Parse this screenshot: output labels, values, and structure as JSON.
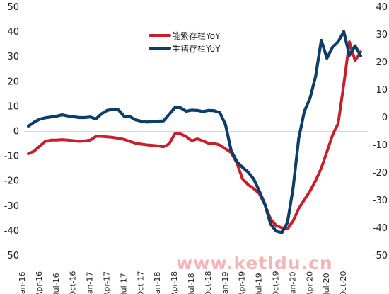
{
  "chart_data": {
    "type": "line",
    "title": "",
    "xlabel": "",
    "ylabel": "",
    "y2label": "",
    "grid": false,
    "legend_placement": "top-center",
    "watermark": "www.ketldu.cn",
    "left_axis": {
      "min": -50,
      "max": 50,
      "ticks": [
        50,
        40,
        30,
        20,
        10,
        0,
        -10,
        -20,
        -30,
        -40,
        -50
      ]
    },
    "right_axis": {
      "min": -50,
      "max": 40,
      "ticks": [
        40,
        30,
        20,
        10,
        0,
        -10,
        -20,
        -30,
        -40,
        -50
      ]
    },
    "x_tick_labels": [
      "Jan-16",
      "Apr-16",
      "Jul-16",
      "Oct-16",
      "Jan-17",
      "Apr-17",
      "Jul-17",
      "Oct-17",
      "Jan-18",
      "Apr-18",
      "Jul-18",
      "Oct-18",
      "Jan-19",
      "Apr-19",
      "Jul-19",
      "Oct-19",
      "Jan-20",
      "Apr-20",
      "Jul-20",
      "Oct-20"
    ],
    "series": [
      {
        "name": "能繁存栏YoY",
        "color": "#c91f2c",
        "axis": "left",
        "values": [
          -9,
          -8,
          -6,
          -4,
          -3.5,
          -3.5,
          -3.3,
          -3.5,
          -3.7,
          -4,
          -3.8,
          -3.5,
          -2,
          -2,
          -2.2,
          -2.4,
          -2.8,
          -3.2,
          -4,
          -4.7,
          -5.1,
          -5.4,
          -5.6,
          -5.8,
          -6.2,
          -5,
          -1,
          -1,
          -2,
          -3.8,
          -3,
          -3.8,
          -4.8,
          -4.8,
          -5.5,
          -7,
          -8.5,
          -12.6,
          -19,
          -21.4,
          -23,
          -25,
          -29.5,
          -35.2,
          -37.9,
          -38.7,
          -39.2,
          -36,
          -31,
          -27.5,
          -24,
          -19.8,
          -14.8,
          -8.2,
          -1.5,
          3.2,
          19,
          36,
          28.5,
          32
        ]
      },
      {
        "name": "生猪存栏YoY",
        "color": "#0e3d68",
        "axis": "right",
        "values": [
          -3.1,
          -1.7,
          -0.6,
          -0.1,
          0.2,
          0.5,
          1,
          0.6,
          0.3,
          0,
          0,
          0.2,
          -0.5,
          1.4,
          2.6,
          3,
          2.8,
          0.5,
          0.4,
          -0.8,
          -1.3,
          -1.6,
          -1.5,
          -1.3,
          -1.2,
          1.2,
          3.6,
          3.6,
          2.3,
          2.7,
          2.6,
          2.2,
          2.6,
          2.5,
          1.8,
          -2.5,
          -11.9,
          -15.9,
          -18,
          -19.7,
          -22.2,
          -26.6,
          -31.4,
          -38.5,
          -41.1,
          -41.7,
          -38,
          -25.5,
          -7.5,
          2.3,
          7,
          15,
          28,
          21.5,
          25.5,
          27.5,
          31.1,
          22.5,
          26,
          22.3
        ]
      }
    ]
  }
}
